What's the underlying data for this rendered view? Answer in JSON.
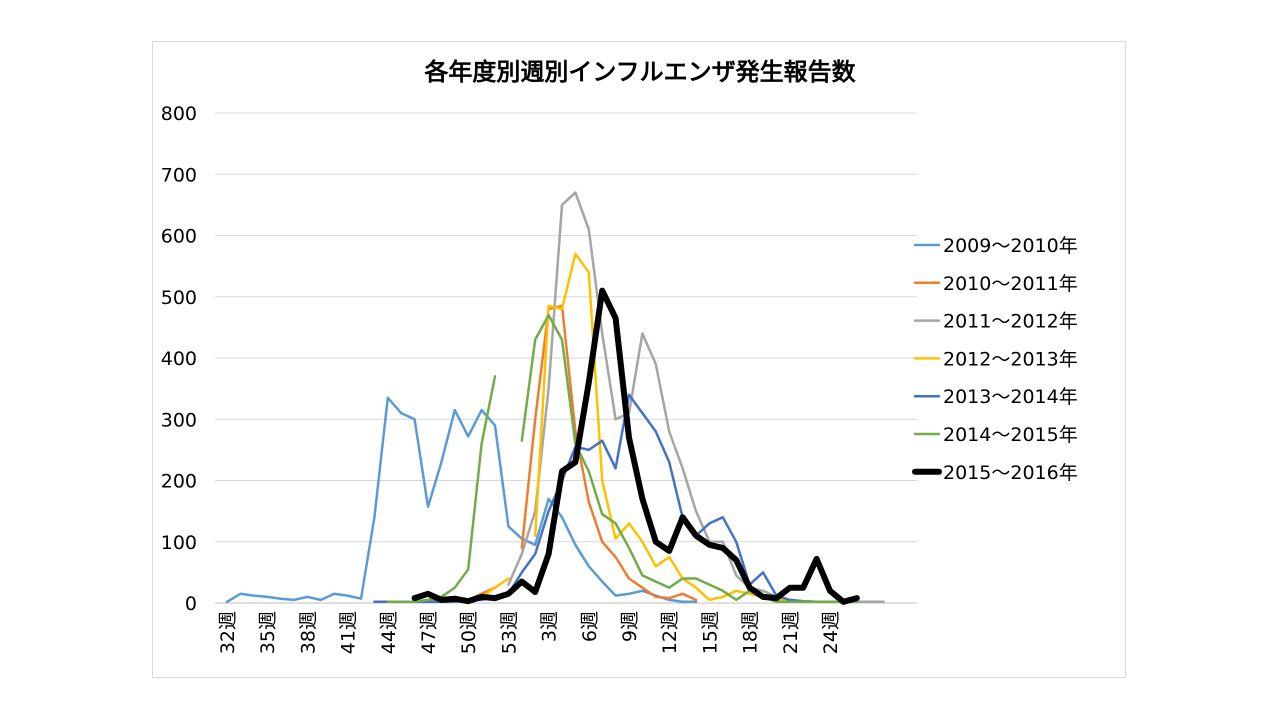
{
  "chart_data": {
    "type": "line",
    "title": "各年度別週別インフルエンザ発生報告数",
    "ylim": [
      0,
      800
    ],
    "yticks": [
      "0",
      "100",
      "200",
      "300",
      "400",
      "500",
      "600",
      "700",
      "800"
    ],
    "xlim": [
      0,
      52
    ],
    "xtick_labels": [
      "32週",
      "35週",
      "38週",
      "41週",
      "44週",
      "47週",
      "50週",
      "53週",
      "3週",
      "6週",
      "9週",
      "12週",
      "15週",
      "18週",
      "21週",
      "24週"
    ],
    "grid": "horizontal",
    "legend_position": "right",
    "series": [
      {
        "name": "2009～2010年",
        "color": "#5b9bd5",
        "width": 2.5,
        "x": [
          0,
          1,
          2,
          3,
          4,
          5,
          6,
          7,
          8,
          9,
          10,
          11,
          12,
          13,
          14,
          15,
          16,
          17,
          18,
          19,
          20,
          21,
          22,
          23,
          24,
          25,
          26,
          27,
          28,
          29,
          30,
          31,
          32,
          33,
          34,
          35
        ],
        "y": [
          2,
          15,
          12,
          10,
          7,
          5,
          10,
          5,
          15,
          12,
          7,
          140,
          335,
          310,
          300,
          157,
          230,
          315,
          272,
          315,
          290,
          125,
          105,
          95,
          170,
          140,
          95,
          60,
          35,
          12,
          15,
          20,
          12,
          5,
          2,
          2
        ]
      },
      {
        "name": "2010～2011年",
        "color": "#ed7d31",
        "width": 2.5,
        "x": [
          12,
          13,
          14,
          15,
          16,
          17,
          18,
          19,
          20,
          21,
          22,
          23,
          24,
          25,
          26,
          27,
          28,
          29,
          30,
          31,
          32,
          33,
          34,
          35,
          36
        ],
        "y": [
          2,
          2,
          2,
          3,
          5,
          5,
          5,
          15,
          25,
          null,
          90,
          300,
          480,
          485,
          280,
          165,
          100,
          75,
          40,
          25,
          10,
          8,
          15,
          5,
          null
        ]
      },
      {
        "name": "2011～2012年",
        "color": "#a5a5a5",
        "width": 2.5,
        "x": [
          21,
          22,
          23,
          24,
          25,
          26,
          27,
          28,
          29,
          30,
          31,
          32,
          33,
          34,
          35,
          36,
          37,
          38,
          39,
          40,
          41,
          42,
          43,
          44,
          45,
          46,
          47,
          48,
          49
        ],
        "y": [
          30,
          80,
          150,
          350,
          650,
          670,
          610,
          440,
          300,
          310,
          440,
          390,
          280,
          220,
          150,
          100,
          100,
          45,
          25,
          20,
          10,
          5,
          3,
          2,
          2,
          2,
          2,
          2,
          2
        ]
      },
      {
        "name": "2012～2013年",
        "color": "#ffc000",
        "width": 2.5,
        "x": [
          13,
          14,
          15,
          16,
          17,
          18,
          19,
          20,
          21,
          22,
          23,
          24,
          25,
          26,
          27,
          28,
          29,
          30,
          31,
          32,
          33,
          34,
          35,
          36,
          37,
          38,
          39,
          40,
          41,
          42,
          43,
          44,
          45,
          46,
          47
        ],
        "y": [
          2,
          2,
          2,
          2,
          3,
          5,
          10,
          25,
          40,
          null,
          110,
          485,
          480,
          570,
          540,
          200,
          105,
          130,
          100,
          60,
          75,
          40,
          25,
          5,
          10,
          20,
          15,
          10,
          5,
          3,
          2,
          2,
          2,
          2,
          2
        ]
      },
      {
        "name": "2013～2014年",
        "color": "#4472c4",
        "width": 2.5,
        "x": [
          11,
          12,
          13,
          14,
          15,
          16,
          17,
          18,
          19,
          20,
          21,
          22,
          23,
          24,
          25,
          26,
          27,
          28,
          29,
          30,
          31,
          32,
          33,
          34,
          35,
          36,
          37,
          38,
          39,
          40,
          41,
          42,
          43,
          44,
          45,
          46,
          47
        ],
        "y": [
          2,
          2,
          2,
          2,
          2,
          2,
          2,
          5,
          5,
          10,
          15,
          50,
          80,
          150,
          200,
          255,
          250,
          265,
          220,
          340,
          310,
          280,
          230,
          140,
          110,
          130,
          140,
          100,
          30,
          50,
          12,
          5,
          3,
          2,
          2,
          2,
          2
        ]
      },
      {
        "name": "2014～2015年",
        "color": "#70ad47",
        "width": 2.5,
        "x": [
          12,
          13,
          14,
          15,
          16,
          17,
          18,
          19,
          20,
          21,
          22,
          23,
          24,
          25,
          26,
          27,
          28,
          29,
          30,
          31,
          32,
          33,
          34,
          35,
          36,
          37,
          38,
          39,
          40,
          41,
          42,
          43,
          44,
          45,
          46,
          47
        ],
        "y": [
          2,
          2,
          2,
          5,
          10,
          25,
          55,
          260,
          370,
          null,
          265,
          430,
          470,
          430,
          260,
          215,
          145,
          130,
          90,
          45,
          35,
          25,
          40,
          40,
          30,
          20,
          5,
          20,
          10,
          2,
          2,
          2,
          2,
          2,
          2,
          2
        ]
      },
      {
        "name": "2015～2016年",
        "color": "#000000",
        "width": 6,
        "x": [
          14,
          15,
          16,
          17,
          18,
          19,
          20,
          21,
          22,
          23,
          24,
          25,
          26,
          27,
          28,
          29,
          30,
          31,
          32,
          33,
          34,
          35,
          36,
          37,
          38,
          39,
          40,
          41,
          42,
          43,
          44,
          45,
          46,
          47,
          48
        ],
        "y": [
          8,
          15,
          5,
          7,
          3,
          10,
          8,
          15,
          35,
          18,
          80,
          215,
          230,
          360,
          510,
          465,
          270,
          170,
          100,
          85,
          140,
          110,
          95,
          90,
          70,
          25,
          10,
          8,
          25,
          25,
          72,
          20,
          2,
          8,
          null
        ]
      }
    ]
  }
}
